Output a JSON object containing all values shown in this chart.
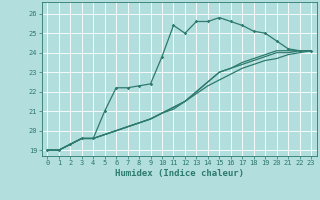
{
  "title": "",
  "xlabel": "Humidex (Indice chaleur)",
  "bg_color": "#b2dede",
  "grid_color": "#ffffff",
  "line_color": "#2d7a6e",
  "xlim": [
    -0.5,
    23.5
  ],
  "ylim": [
    18.7,
    26.6
  ],
  "yticks": [
    19,
    20,
    21,
    22,
    23,
    24,
    25,
    26
  ],
  "xticks": [
    0,
    1,
    2,
    3,
    4,
    5,
    6,
    7,
    8,
    9,
    10,
    11,
    12,
    13,
    14,
    15,
    16,
    17,
    18,
    19,
    20,
    21,
    22,
    23
  ],
  "series": [
    [
      19.0,
      19.0,
      19.3,
      19.6,
      19.6,
      21.0,
      22.2,
      22.2,
      22.3,
      22.4,
      23.8,
      25.4,
      25.0,
      25.6,
      25.6,
      25.8,
      25.6,
      25.4,
      25.1,
      25.0,
      24.6,
      24.2,
      24.1,
      24.1
    ],
    [
      19.0,
      19.0,
      19.3,
      19.6,
      19.6,
      19.8,
      20.0,
      20.2,
      20.4,
      20.6,
      20.9,
      21.2,
      21.5,
      22.0,
      22.5,
      23.0,
      23.2,
      23.5,
      23.7,
      23.9,
      24.1,
      24.1,
      24.1,
      24.1
    ],
    [
      19.0,
      19.0,
      19.3,
      19.6,
      19.6,
      19.8,
      20.0,
      20.2,
      20.4,
      20.6,
      20.9,
      21.2,
      21.5,
      22.0,
      22.5,
      23.0,
      23.2,
      23.4,
      23.6,
      23.8,
      24.0,
      24.0,
      24.1,
      24.1
    ],
    [
      19.0,
      19.0,
      19.3,
      19.6,
      19.6,
      19.8,
      20.0,
      20.2,
      20.4,
      20.6,
      20.9,
      21.1,
      21.5,
      21.9,
      22.3,
      22.6,
      22.9,
      23.2,
      23.4,
      23.6,
      23.7,
      23.9,
      24.0,
      24.1
    ]
  ],
  "marker_series": 0,
  "marker": "D",
  "marker_size": 1.8,
  "linewidth": 0.9,
  "xlabel_fontsize": 6.5,
  "tick_fontsize": 5.0,
  "xlabel_color": "#2d7a6e",
  "tick_color": "#2d7a6e",
  "spine_color": "#2d7a6e"
}
